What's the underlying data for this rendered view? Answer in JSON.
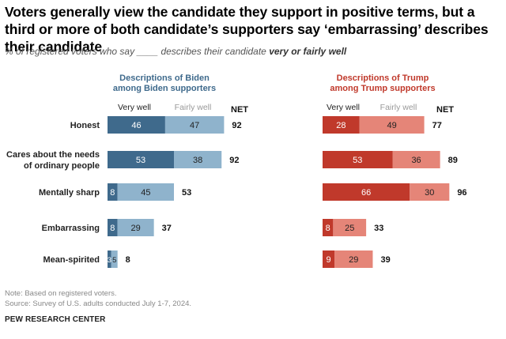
{
  "title": "Voters generally view the candidate they support in positive terms, but a third or more of both candidate’s supporters say ‘embarrassing’ describes their candidate",
  "subtitle_prefix": "% of registered voters who say ____ describes their candidate ",
  "subtitle_emphasis": "very or fairly well",
  "note": "Note: Based on registered voters.",
  "source": "Source: Survey of U.S. adults conducted July 1-7, 2024.",
  "brand": "PEW RESEARCH CENTER",
  "colors": {
    "biden_very": "#3f6a8c",
    "biden_fairly": "#8fb3cc",
    "trump_very": "#c0392b",
    "trump_fairly": "#e58578",
    "biden_heading": "#3f6a8c",
    "trump_heading": "#c0392b"
  },
  "chart_data": {
    "type": "bar",
    "orientation": "horizontal",
    "stacked": true,
    "categories": [
      [
        "Honest"
      ],
      [
        "Cares about the needs",
        "of ordinary people"
      ],
      [
        "Mentally sharp"
      ],
      [
        "Embarrassing"
      ],
      [
        "Mean-spirited"
      ]
    ],
    "panels": [
      {
        "title": [
          "Descriptions of Biden",
          "among Biden supporters"
        ],
        "very_label": "Very well",
        "fairly_label": "Fairly well",
        "net_label": "NET",
        "series": [
          {
            "name": "Very well",
            "values": [
              46,
              53,
              8,
              8,
              3
            ]
          },
          {
            "name": "Fairly well",
            "values": [
              47,
              38,
              45,
              29,
              5
            ]
          }
        ],
        "net": [
          92,
          92,
          53,
          37,
          8
        ]
      },
      {
        "title": [
          "Descriptions of Trump",
          "among Trump supporters"
        ],
        "very_label": "Very well",
        "fairly_label": "Fairly well",
        "net_label": "NET",
        "series": [
          {
            "name": "Very well",
            "values": [
              28,
              53,
              66,
              8,
              9
            ]
          },
          {
            "name": "Fairly well",
            "values": [
              49,
              36,
              30,
              25,
              29
            ]
          }
        ],
        "net": [
          77,
          89,
          96,
          33,
          39
        ]
      }
    ]
  }
}
